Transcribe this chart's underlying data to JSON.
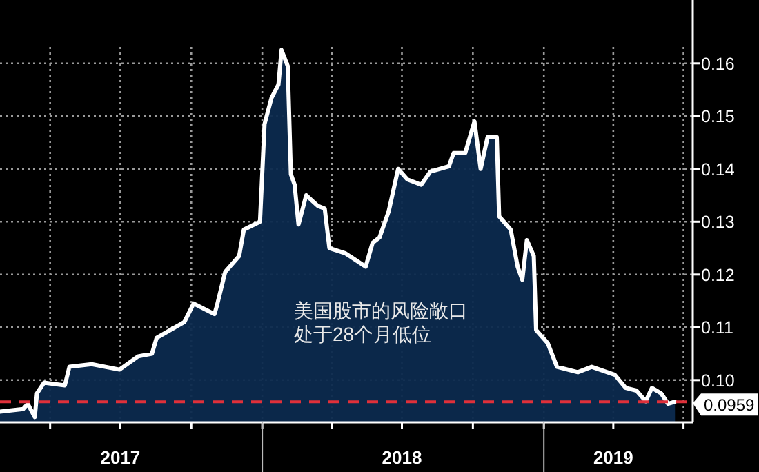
{
  "chart_data": {
    "type": "area",
    "x": [
      "2017-01-26",
      "2017-02-25",
      "2017-03-03",
      "2017-03-12",
      "2017-03-15",
      "2017-03-24",
      "2017-04-20",
      "2017-04-26",
      "2017-05-25",
      "2017-06-30",
      "2017-07-24",
      "2017-08-11",
      "2017-08-17",
      "2017-09-22",
      "2017-10-04",
      "2017-10-31",
      "2017-11-03",
      "2017-11-14",
      "2017-12-02",
      "2017-12-08",
      "2017-12-29",
      "2018-01-04",
      "2018-01-13",
      "2018-01-22",
      "2018-01-26",
      "2018-02-03",
      "2018-02-07",
      "2018-02-12",
      "2018-02-17",
      "2018-02-27",
      "2018-03-14",
      "2018-03-23",
      "2018-03-29",
      "2018-04-19",
      "2018-05-15",
      "2018-05-24",
      "2018-06-02",
      "2018-06-14",
      "2018-06-26",
      "2018-07-08",
      "2018-07-26",
      "2018-08-07",
      "2018-08-31",
      "2018-09-06",
      "2018-09-21",
      "2018-10-03",
      "2018-10-11",
      "2018-10-20",
      "2018-11-01",
      "2018-11-04",
      "2018-11-19",
      "2018-11-28",
      "2018-12-04",
      "2018-12-10",
      "2018-12-19",
      "2018-12-22",
      "2019-01-06",
      "2019-01-18",
      "2019-02-14",
      "2019-03-04",
      "2019-04-03",
      "2019-04-17",
      "2019-05-01",
      "2019-05-13",
      "2019-05-21",
      "2019-06-02",
      "2019-06-11",
      "2019-06-20"
    ],
    "series": [
      {
        "color": "#ffffff",
        "values": [
          0.094,
          0.0945,
          0.0955,
          0.093,
          0.0975,
          0.0995,
          0.099,
          0.1025,
          0.103,
          0.102,
          0.1045,
          0.105,
          0.108,
          0.111,
          0.1145,
          0.1125,
          0.114,
          0.1205,
          0.1235,
          0.1285,
          0.13,
          0.1485,
          0.1535,
          0.156,
          0.1625,
          0.1595,
          0.139,
          0.137,
          0.1295,
          0.135,
          0.133,
          0.1325,
          0.125,
          0.124,
          0.1215,
          0.126,
          0.127,
          0.132,
          0.14,
          0.138,
          0.137,
          0.1395,
          0.1405,
          0.143,
          0.143,
          0.149,
          0.14,
          0.146,
          0.146,
          0.131,
          0.1285,
          0.1215,
          0.119,
          0.1265,
          0.1235,
          0.1095,
          0.107,
          0.1025,
          0.1015,
          0.1025,
          0.101,
          0.0985,
          0.098,
          0.096,
          0.0985,
          0.0975,
          0.0955,
          0.0959
        ]
      }
    ],
    "xlim": [
      "2017-01-26",
      "2019-07-13"
    ],
    "xticks": [
      {
        "value": "2017-04-01",
        "label": null
      },
      {
        "value": "2017-07-01",
        "label": "2017"
      },
      {
        "value": "2017-10-01",
        "label": null
      },
      {
        "value": "2018-01-01",
        "label": null
      },
      {
        "value": "2018-04-01",
        "label": null
      },
      {
        "value": "2018-07-01",
        "label": "2018"
      },
      {
        "value": "2018-10-01",
        "label": null
      },
      {
        "value": "2019-01-01",
        "label": null
      },
      {
        "value": "2019-04-01",
        "label": "2019"
      },
      {
        "value": "2019-07-01",
        "label": null
      }
    ],
    "ylim": [
      0.092,
      0.172
    ],
    "yticks": [
      {
        "value": 0.1,
        "label": "0.10"
      },
      0.11,
      0.12,
      0.13,
      0.14,
      0.15,
      0.16
    ],
    "grid": true,
    "ref_lines": [
      {
        "axis": "y",
        "value": 0.0959,
        "label": "0.0959",
        "color": "#e0303a",
        "line_style": "dashed"
      }
    ],
    "annotations": [
      "美国股市的风险敞口",
      "处于28个月低位"
    ]
  }
}
